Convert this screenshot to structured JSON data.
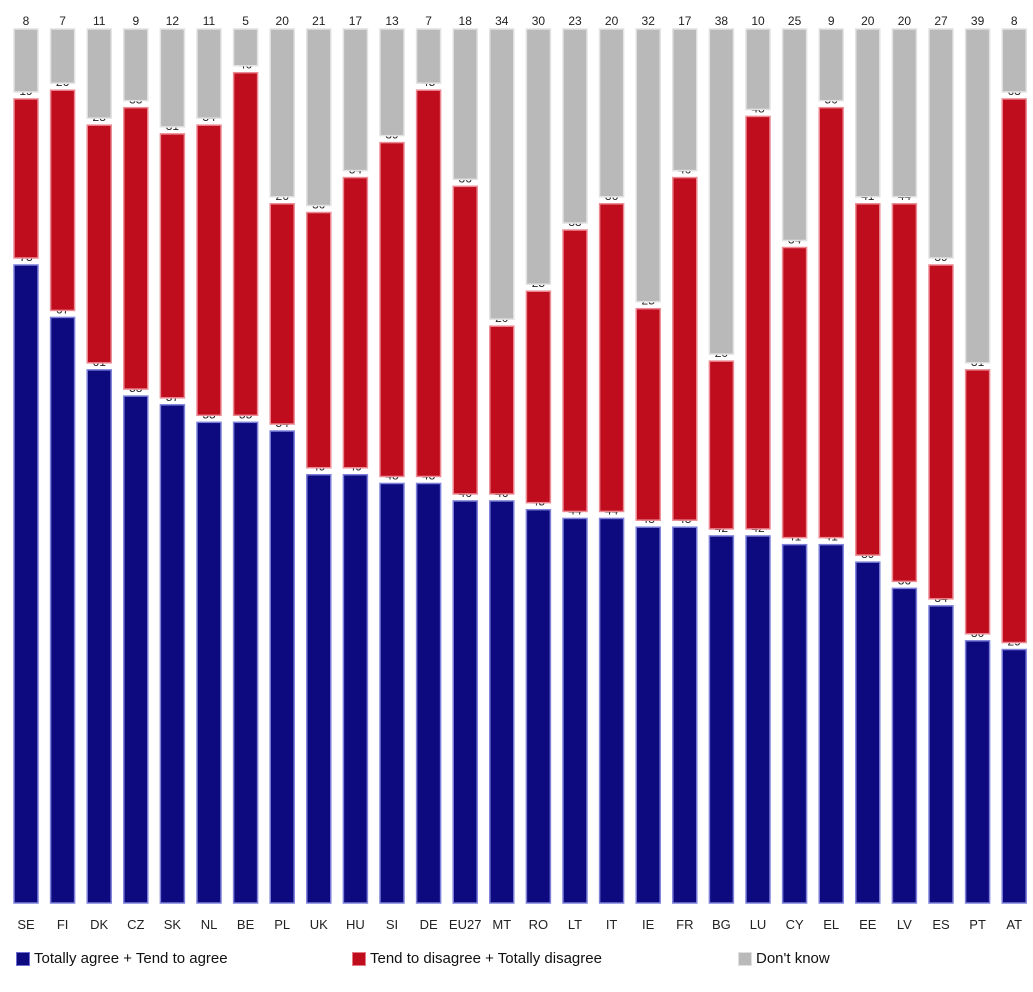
{
  "chart_data": {
    "type": "bar",
    "stacked": true,
    "categories": [
      "SE",
      "FI",
      "DK",
      "CZ",
      "SK",
      "NL",
      "BE",
      "PL",
      "UK",
      "HU",
      "SI",
      "DE",
      "EU27",
      "MT",
      "RO",
      "LT",
      "IT",
      "IE",
      "FR",
      "BG",
      "LU",
      "CY",
      "EL",
      "EE",
      "LV",
      "ES",
      "PT",
      "AT"
    ],
    "series": [
      {
        "name": "Totally agree + Tend to agree",
        "color": "#0d0a80",
        "values": [
          73,
          67,
          61,
          58,
          57,
          55,
          55,
          54,
          49,
          49,
          48,
          48,
          46,
          46,
          45,
          44,
          44,
          43,
          43,
          42,
          42,
          41,
          41,
          39,
          36,
          34,
          30,
          29
        ]
      },
      {
        "name": "Tend to disagree + Totally disagree",
        "color": "#c00d1e",
        "values": [
          19,
          26,
          28,
          33,
          31,
          34,
          40,
          26,
          30,
          34,
          39,
          45,
          36,
          20,
          25,
          33,
          36,
          25,
          40,
          20,
          48,
          34,
          50,
          41,
          44,
          39,
          31,
          63
        ]
      },
      {
        "name": "Don't know",
        "color": "#b9b9b9",
        "values": [
          8,
          7,
          11,
          9,
          12,
          11,
          5,
          20,
          21,
          17,
          13,
          7,
          18,
          34,
          30,
          23,
          20,
          32,
          17,
          38,
          10,
          25,
          9,
          20,
          20,
          27,
          39,
          8
        ]
      }
    ],
    "ylim": [
      0,
      100
    ],
    "grid": false,
    "legend_position": "bottom"
  }
}
